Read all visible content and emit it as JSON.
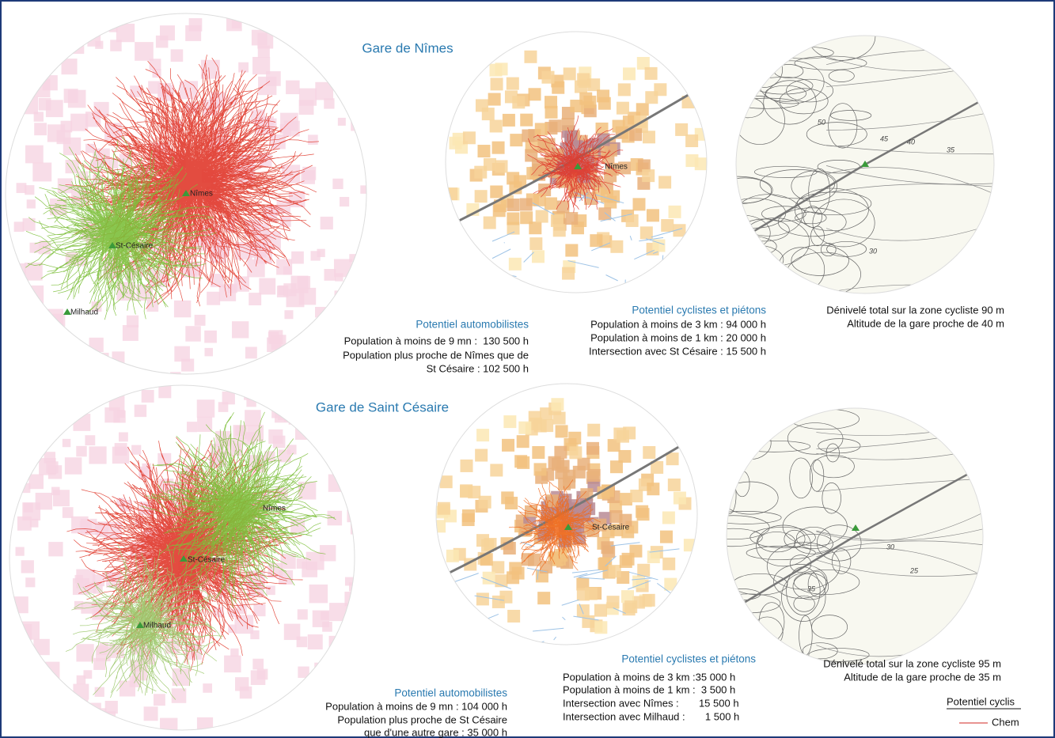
{
  "sections": [
    {
      "title": "Gare de Nîmes",
      "car_map": {
        "labels": [
          "Nîmes",
          "St-Césaire",
          "Milhaud"
        ]
      },
      "bike_map": {
        "labels": [
          "Nîmes"
        ]
      },
      "relief_map": {
        "labels": [
          "45",
          "40",
          "35",
          "50",
          "30"
        ]
      },
      "car": {
        "heading": "Potentiel automobilistes",
        "lines": [
          "Population à moins de 9 mn :  130 500 h",
          "Population plus proche de Nîmes que de",
          "St Césaire : 102 500 h"
        ]
      },
      "bike": {
        "heading": "Potentiel cyclistes et piétons",
        "lines": [
          "Population à moins de 3 km : 94 000 h",
          "Population à moins de 1 km : 20 000 h",
          "Intersection avec St Césaire : 15 500 h"
        ]
      },
      "relief": {
        "lines": [
          "Dénivelé total sur la zone cycliste 90 m",
          "Altitude de la gare proche de 40 m"
        ]
      }
    },
    {
      "title": "Gare de Saint Césaire",
      "car_map": {
        "labels": [
          "Nîmes",
          "St-Césaire",
          "Milhaud"
        ]
      },
      "bike_map": {
        "labels": [
          "St-Césaire"
        ]
      },
      "relief_map": {
        "labels": [
          "25",
          "30",
          "35"
        ]
      },
      "car": {
        "heading": "Potentiel automobilistes",
        "lines": [
          "Population à moins de 9 mn : 104 000 h",
          "Population plus proche de St Césaire",
          "que d'une autre gare : 35 000 h"
        ]
      },
      "bike": {
        "heading": "Potentiel cyclistes et piétons",
        "lines": [
          "Population à moins de 3 km :35 000 h",
          "Population à moins de 1 km :  3 500 h",
          "Intersection avec Nîmes :       15 500 h",
          "Intersection avec Milhaud :       1 500 h"
        ]
      },
      "relief": {
        "lines": [
          "Dénivelé total sur la zone cycliste 95 m",
          "Altitude de la gare proche de 35 m"
        ]
      }
    }
  ],
  "legend": {
    "title": "Potentiel cyclis",
    "item": "Chem"
  }
}
